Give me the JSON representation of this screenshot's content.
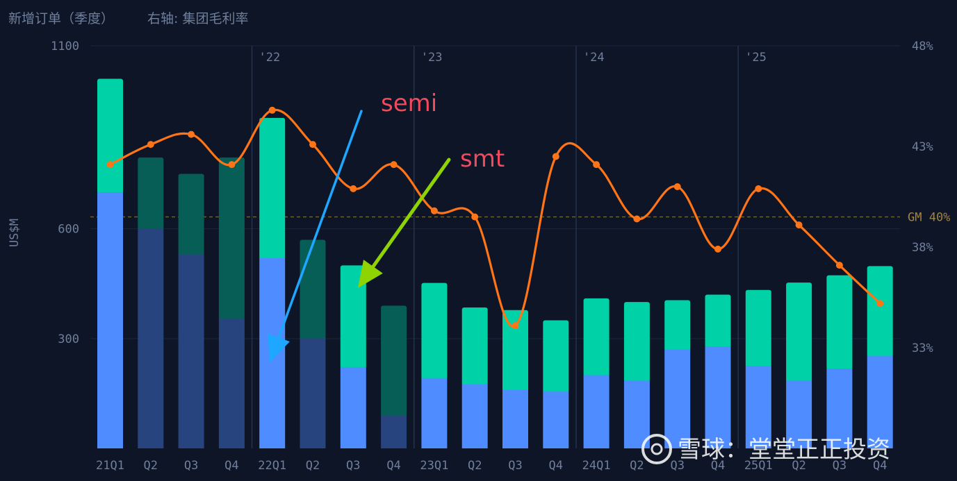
{
  "chart_data": {
    "type": "bar",
    "title": "新增订单（季度）",
    "subtitle": "右轴: 集团毛利率",
    "ylabel": "US$M",
    "ylim": [
      0,
      1100
    ],
    "y_ticks": [
      300,
      600,
      1100
    ],
    "y2lim": [
      28,
      48
    ],
    "y2_ticks": [
      "33%",
      "38%",
      "43%",
      "48%"
    ],
    "y2_tick_values": [
      33,
      38,
      43,
      48
    ],
    "categories": [
      "21Q1",
      "Q2",
      "Q3",
      "Q4",
      "22Q1",
      "Q2",
      "Q3",
      "Q4",
      "23Q1",
      "Q2",
      "Q3",
      "Q4",
      "24Q1",
      "Q2",
      "Q3",
      "Q4",
      "25Q1",
      "Q2",
      "Q3",
      "Q4"
    ],
    "year_markers": [
      {
        "label": "'22",
        "after_index": 3.5
      },
      {
        "label": "'23",
        "after_index": 7.5
      },
      {
        "label": "'24",
        "after_index": 11.5
      },
      {
        "label": "'25",
        "after_index": 15.5
      }
    ],
    "series": [
      {
        "values": [
          700,
          600,
          530,
          355,
          520,
          300,
          222,
          90,
          192,
          175,
          160,
          155,
          200,
          185,
          270,
          278,
          225,
          185,
          218,
          253
        ]
      },
      {
        "values": [
          310,
          195,
          220,
          440,
          383,
          270,
          278,
          300,
          260,
          210,
          218,
          195,
          210,
          215,
          135,
          142,
          208,
          268,
          255,
          245
        ]
      },
      {
        "type": "line",
        "axis": "right",
        "values": [
          42.1,
          43.1,
          43.6,
          42.1,
          44.8,
          43.1,
          40.9,
          42.1,
          39.8,
          39.5,
          34.1,
          42.5,
          42.1,
          39.4,
          41.0,
          37.9,
          40.9,
          39.1,
          37.1,
          35.2
        ]
      }
    ],
    "reference_line": {
      "label": "GM 40%",
      "value": 39.5
    },
    "annotations": [
      {
        "label": "semi",
        "color": "#1ea7ff",
        "points_to_index": 4
      },
      {
        "label": "smt",
        "color": "#8fd400",
        "points_to_index": 6
      }
    ],
    "colors": {
      "semi_bright": "#4f8cff",
      "semi_dim": "#28447e",
      "smt_bright": "#00d1a7",
      "smt_dim": "#075e57",
      "line": "#ff7417",
      "reference": "#7a6a35",
      "grid": "#1b2740",
      "year_line": "#24324e"
    },
    "dim_indices": [
      1,
      2,
      3,
      5,
      7
    ]
  },
  "watermark": "雪球：堂堂正正投资"
}
